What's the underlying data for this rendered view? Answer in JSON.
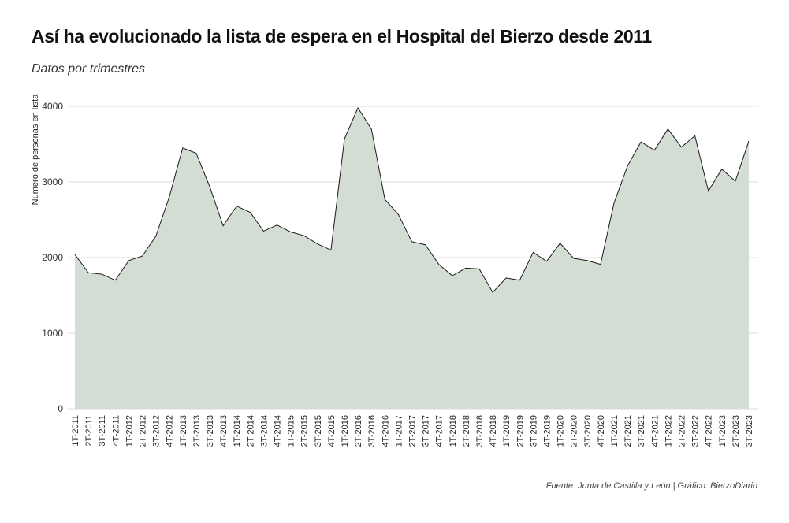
{
  "chart_data": {
    "type": "area",
    "title": "Así ha evolucionado la lista de espera en el Hospital del Bierzo desde 2011",
    "subtitle": "Datos por trimestres",
    "caption": "Fuente: Junta de Castilla y León | Gráfico: BierzoDiario",
    "ylabel": "Número de personas en lista",
    "xlabel": "",
    "ylim": [
      0,
      4000
    ],
    "yticks": [
      0,
      1000,
      2000,
      3000,
      4000
    ],
    "grid": true,
    "fill_color": "#d3ddd3",
    "line_color": "#1a1a1a",
    "categories": [
      "1T-2011",
      "2T-2011",
      "3T-2011",
      "4T-2011",
      "1T-2012",
      "2T-2012",
      "3T-2012",
      "4T-2012",
      "1T-2013",
      "2T-2013",
      "3T-2013",
      "4T-2013",
      "1T-2014",
      "2T-2014",
      "3T-2014",
      "4T-2014",
      "1T-2015",
      "2T-2015",
      "3T-2015",
      "4T-2015",
      "1T-2016",
      "2T-2016",
      "3T-2016",
      "4T-2016",
      "1T-2017",
      "2T-2017",
      "3T-2017",
      "4T-2017",
      "1T-2018",
      "2T-2018",
      "3T-2018",
      "4T-2018",
      "1T-2019",
      "2T-2019",
      "3T-2019",
      "4T-2019",
      "1T-2020",
      "2T-2020",
      "3T-2020",
      "4T-2020",
      "1T-2021",
      "2T-2021",
      "3T-2021",
      "4T-2021",
      "1T-2022",
      "2T-2022",
      "3T-2022",
      "4T-2022",
      "1T-2023",
      "2T-2023",
      "3T-2023"
    ],
    "values": [
      2040,
      1800,
      1780,
      1700,
      1960,
      2020,
      2280,
      2800,
      3450,
      3380,
      2940,
      2420,
      2680,
      2600,
      2350,
      2430,
      2340,
      2290,
      2180,
      2100,
      3570,
      3980,
      3700,
      2770,
      2570,
      2210,
      2170,
      1910,
      1760,
      1860,
      1850,
      1540,
      1730,
      1700,
      2070,
      1950,
      2190,
      1990,
      1960,
      1910,
      2720,
      3210,
      3530,
      3420,
      3700,
      3460,
      3610,
      2880,
      3170,
      3010,
      3540
    ]
  }
}
